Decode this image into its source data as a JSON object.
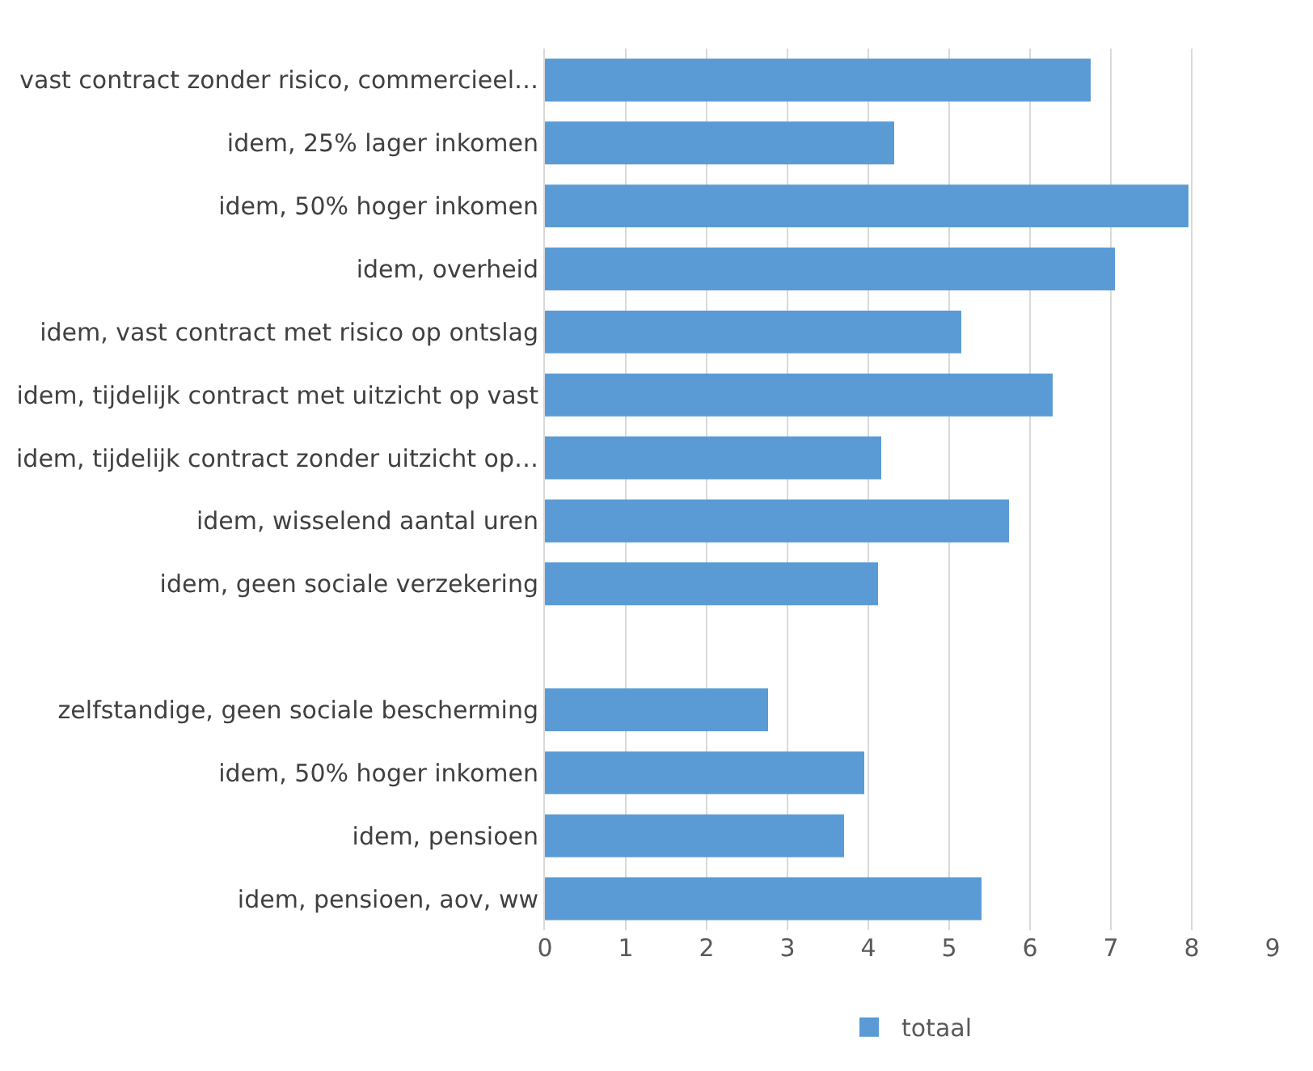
{
  "chart_data": {
    "type": "bar",
    "orientation": "horizontal",
    "categories": [
      "vast contract zonder risico, commercieel…",
      "idem, 25% lager inkomen",
      "idem, 50% hoger inkomen",
      "idem, overheid",
      "idem, vast contract met risico op ontslag",
      "idem, tijdelijk contract met uitzicht op vast",
      "idem, tijdelijk contract zonder uitzicht op…",
      "idem, wisselend aantal uren",
      "idem, geen sociale verzekering",
      null,
      "zelfstandige, geen sociale bescherming",
      "idem, 50% hoger inkomen",
      "idem, pensioen",
      "idem, pensioen, aov, ww"
    ],
    "series": [
      {
        "name": "totaal",
        "color": "#5b9bd5",
        "values": [
          6.75,
          4.32,
          7.96,
          7.05,
          5.15,
          6.28,
          4.16,
          5.74,
          4.12,
          null,
          2.76,
          3.95,
          3.7,
          5.4
        ]
      }
    ],
    "xlim": [
      0,
      9
    ],
    "xticks": [
      0,
      1,
      2,
      3,
      4,
      5,
      6,
      7,
      8,
      9
    ],
    "grid": "x",
    "legend": "bottom"
  }
}
